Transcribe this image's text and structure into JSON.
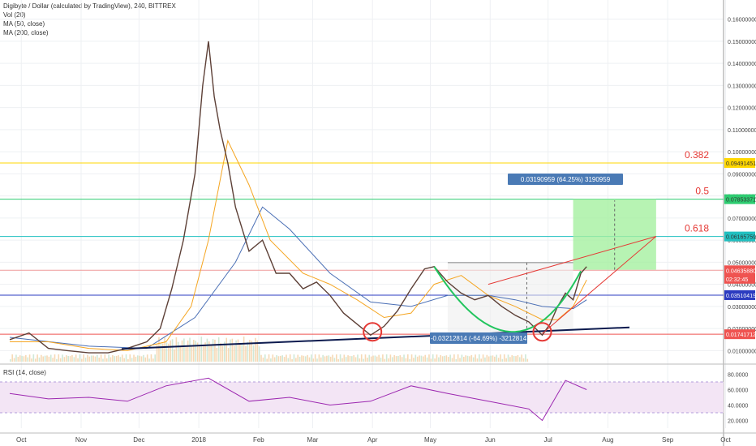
{
  "header": {
    "title": "Digibyte / Dollar (calculated by TradingView), 240, BITTREX",
    "indicators": [
      "Vol (20)",
      "MA (50, close)",
      "MA (200, close)"
    ]
  },
  "rsi": {
    "label": "RSI (14, close)",
    "ticks": [
      "80.0000",
      "60.0000",
      "40.0000",
      "20.0000"
    ]
  },
  "colors": {
    "candle_up": "#26a69a",
    "candle_down": "#ef5350",
    "ma50": "#f5a623",
    "ma200": "#4a6fb5",
    "fib_382": "#ffd700",
    "fib_5": "#2ecc71",
    "fib_618": "#20c0c0",
    "rsi_line": "#9c27b0"
  },
  "chart_data": [
    {
      "type": "line",
      "title": "Digibyte / Dollar (calculated by TradingView), 240, BITTREX",
      "x_labels": [
        "Oct",
        "Nov",
        "Dec",
        "2018",
        "Feb",
        "Mar",
        "Apr",
        "May",
        "Jun",
        "Jul",
        "Aug",
        "Sep",
        "Oct"
      ],
      "y_ticks": [
        "0.16000000",
        "0.15000000",
        "0.14000000",
        "0.13000000",
        "0.12000000",
        "0.11000000",
        "0.10000000",
        "0.09000000",
        "0.08000000",
        "0.07000000",
        "0.06000000",
        "0.05000000",
        "0.04000000",
        "0.03000000",
        "0.02000000",
        "0.01000000"
      ],
      "ylim": [
        0.005,
        0.165
      ],
      "series": [
        {
          "name": "Digibyte / Dollar",
          "x": [
            "2017-09-25",
            "2017-10-05",
            "2017-10-15",
            "2017-10-25",
            "2017-11-05",
            "2017-11-15",
            "2017-11-25",
            "2017-12-05",
            "2017-12-12",
            "2017-12-18",
            "2017-12-24",
            "2017-12-30",
            "2018-01-03",
            "2018-01-06",
            "2018-01-09",
            "2018-01-12",
            "2018-01-16",
            "2018-01-20",
            "2018-01-27",
            "2018-02-03",
            "2018-02-10",
            "2018-02-17",
            "2018-02-24",
            "2018-03-03",
            "2018-03-10",
            "2018-03-17",
            "2018-03-24",
            "2018-03-31",
            "2018-04-07",
            "2018-04-14",
            "2018-04-21",
            "2018-04-28",
            "2018-05-03",
            "2018-05-10",
            "2018-05-17",
            "2018-05-24",
            "2018-05-31",
            "2018-06-07",
            "2018-06-14",
            "2018-06-21",
            "2018-06-28",
            "2018-07-02",
            "2018-07-06",
            "2018-07-10",
            "2018-07-14",
            "2018-07-18",
            "2018-07-21"
          ],
          "y": [
            0.015,
            0.018,
            0.011,
            0.01,
            0.009,
            0.009,
            0.011,
            0.014,
            0.02,
            0.038,
            0.06,
            0.09,
            0.13,
            0.15,
            0.125,
            0.11,
            0.095,
            0.075,
            0.055,
            0.06,
            0.045,
            0.045,
            0.038,
            0.041,
            0.035,
            0.027,
            0.022,
            0.017,
            0.021,
            0.028,
            0.038,
            0.047,
            0.048,
            0.041,
            0.036,
            0.033,
            0.035,
            0.03,
            0.026,
            0.023,
            0.017,
            0.022,
            0.03,
            0.036,
            0.033,
            0.045,
            0.048
          ]
        },
        {
          "name": "MA (50, close)",
          "x": [
            "2017-09-25",
            "2017-10-15",
            "2017-11-05",
            "2017-11-25",
            "2017-12-15",
            "2017-12-28",
            "2018-01-06",
            "2018-01-16",
            "2018-01-27",
            "2018-02-07",
            "2018-02-24",
            "2018-03-10",
            "2018-03-24",
            "2018-04-07",
            "2018-04-21",
            "2018-05-03",
            "2018-05-17",
            "2018-05-31",
            "2018-06-14",
            "2018-06-28",
            "2018-07-06",
            "2018-07-14",
            "2018-07-21"
          ],
          "y": [
            0.014,
            0.014,
            0.011,
            0.01,
            0.014,
            0.03,
            0.06,
            0.105,
            0.085,
            0.06,
            0.045,
            0.04,
            0.033,
            0.025,
            0.027,
            0.04,
            0.044,
            0.035,
            0.03,
            0.024,
            0.024,
            0.03,
            0.042
          ]
        },
        {
          "name": "MA (200, close)",
          "x": [
            "2017-09-25",
            "2017-11-05",
            "2017-12-05",
            "2017-12-30",
            "2018-01-20",
            "2018-02-03",
            "2018-02-17",
            "2018-03-10",
            "2018-03-31",
            "2018-04-21",
            "2018-05-10",
            "2018-05-31",
            "2018-06-14",
            "2018-06-28",
            "2018-07-14",
            "2018-07-21"
          ],
          "y": [
            0.016,
            0.012,
            0.011,
            0.025,
            0.05,
            0.075,
            0.065,
            0.045,
            0.032,
            0.03,
            0.035,
            0.035,
            0.033,
            0.03,
            0.029,
            0.033
          ]
        }
      ],
      "price_labels": [
        {
          "text": "0.09491451",
          "value": 0.09491451,
          "color": "#ffd700",
          "text_color": "#333333"
        },
        {
          "text": "0.07853371",
          "value": 0.07853371,
          "color": "#2ecc71",
          "text_color": "#333333"
        },
        {
          "text": "0.06165759",
          "value": 0.06165759,
          "color": "#20c0c0",
          "text_color": "#333333"
        },
        {
          "text": "0.04635880",
          "value": 0.0463588,
          "color": "#ef5350",
          "text_color": "#ffffff"
        },
        {
          "text": "02:32:45",
          "value": 0.0425,
          "color": "#ef5350",
          "text_color": "#ffffff"
        },
        {
          "text": "0.03510419",
          "value": 0.03510419,
          "color": "#2b3bc0",
          "text_color": "#ffffff"
        },
        {
          "text": "0.01741712",
          "value": 0.01741712,
          "color": "#ef5350",
          "text_color": "#ffffff"
        }
      ],
      "fib_levels": [
        {
          "label": "0.382",
          "value": 0.09491451,
          "color": "#ffd700"
        },
        {
          "label": "0.5",
          "value": 0.07853371,
          "color": "#2ecc71"
        },
        {
          "label": "0.618",
          "value": 0.06165759,
          "color": "#20c0c0"
        }
      ],
      "annotations": [
        {
          "text": "0.03190959 (64.25%) 3190959"
        },
        {
          "text": "-0.03212814 (-64.69%) -3212814"
        }
      ]
    },
    {
      "type": "line",
      "title": "RSI (14, close)",
      "y_ticks": [
        "80.0000",
        "60.0000",
        "40.0000",
        "20.0000"
      ],
      "ylim": [
        10,
        90
      ],
      "bands": [
        30,
        70
      ],
      "series": [
        {
          "name": "RSI (14, close)",
          "x": [
            "2017-09-25",
            "2017-10-15",
            "2017-11-05",
            "2017-11-25",
            "2017-12-15",
            "2018-01-06",
            "2018-01-27",
            "2018-02-17",
            "2018-03-10",
            "2018-03-31",
            "2018-04-21",
            "2018-05-10",
            "2018-05-31",
            "2018-06-21",
            "2018-06-28",
            "2018-07-10",
            "2018-07-21"
          ],
          "y": [
            55,
            48,
            50,
            45,
            65,
            75,
            45,
            50,
            40,
            45,
            65,
            55,
            45,
            35,
            20,
            72,
            60
          ]
        }
      ]
    }
  ]
}
